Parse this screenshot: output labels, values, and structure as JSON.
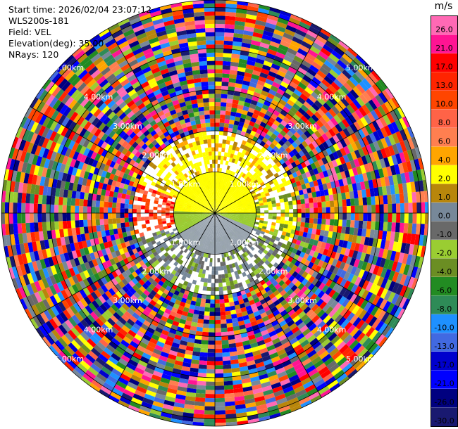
{
  "info": {
    "start_time": "Start time: 2026/02/04 23:07:12",
    "site": "WLS200s-181",
    "field": "Field: VEL",
    "elevation": "Elevation(deg): 35.00",
    "nrays": "NRays: 120"
  },
  "chart_data": {
    "type": "heatmap",
    "projection": "polar-ppi",
    "field": "VEL",
    "units": "m/s",
    "elevation_deg": 35.0,
    "nrays": 120,
    "max_range_km": 6.0,
    "range_ring_labels": [
      "1.00km",
      "2.00km",
      "3.00km",
      "4.00km",
      "5.00km"
    ],
    "range_rings_km": [
      1,
      2,
      3,
      4,
      5
    ],
    "grid": true,
    "colorbar": {
      "labels": [
        "26.0",
        "21.0",
        "17.0",
        "13.0",
        "10.0",
        "8.0",
        "6.0",
        "4.0",
        "2.0",
        "1.0",
        "0.0",
        "-1.0",
        "-2.0",
        "-4.0",
        "-6.0",
        "-8.0",
        "-10.0",
        "-13.0",
        "-17.0",
        "-21.0",
        "-26.0",
        "-30.0"
      ],
      "colors": [
        "#ff69b4",
        "#ff1493",
        "#ff0000",
        "#ff2400",
        "#ff4500",
        "#ff6347",
        "#ff7f50",
        "#ffa500",
        "#ffff00",
        "#b8860b",
        "#778899",
        "#696969",
        "#9acd32",
        "#6b8e23",
        "#228b22",
        "#2e8b57",
        "#1e90ff",
        "#4169e1",
        "#0000cd",
        "#0000ff",
        "#000080",
        "#191970"
      ]
    }
  }
}
